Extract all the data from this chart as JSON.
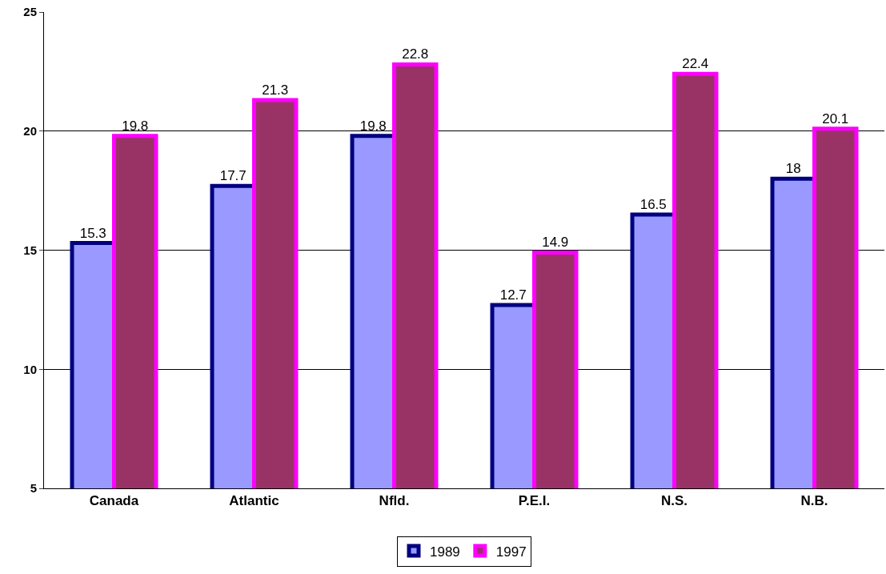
{
  "chart_data": {
    "type": "bar",
    "categories": [
      "Canada",
      "Atlantic",
      "Nfld.",
      "P.E.I.",
      "N.S.",
      "N.B."
    ],
    "series": [
      {
        "name": "1989",
        "color": "#9999ff",
        "values": [
          15.3,
          17.7,
          19.8,
          12.7,
          16.5,
          18
        ]
      },
      {
        "name": "1997",
        "color": "#993366",
        "values": [
          19.8,
          21.3,
          22.8,
          14.9,
          22.4,
          20.1
        ]
      }
    ],
    "ylim": [
      5,
      25
    ],
    "yticks": [
      5,
      10,
      15,
      20,
      25
    ],
    "grid": "y",
    "legend": "bottom",
    "data_labels": true
  }
}
